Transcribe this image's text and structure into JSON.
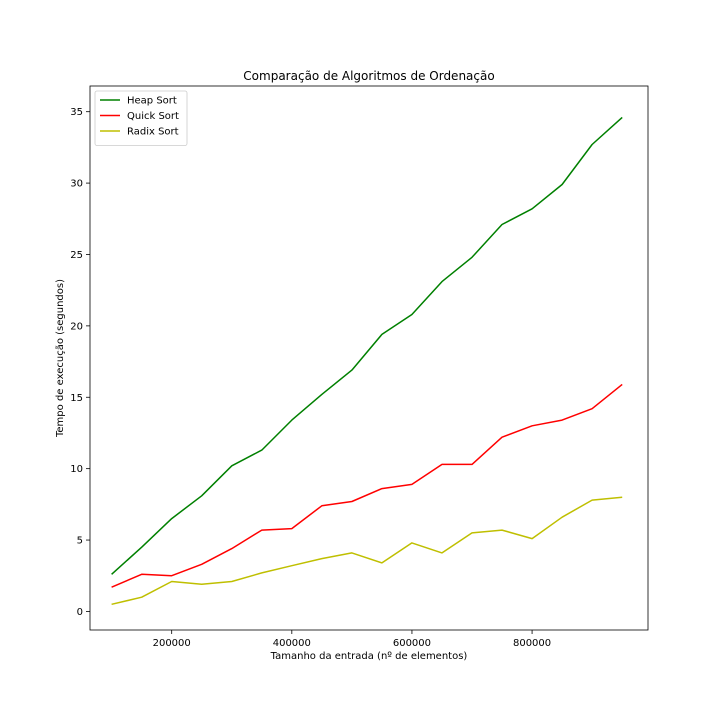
{
  "chart_data": {
    "type": "line",
    "title": "Comparação de Algoritmos de Ordenação",
    "xlabel": "Tamanho da entrada (nº de elementos)",
    "ylabel": "Tempo de execução (segundos)",
    "xlim": [
      64000,
      993000
    ],
    "ylim": [
      -1.3,
      36.8
    ],
    "xticks": [
      200000,
      400000,
      600000,
      800000
    ],
    "yticks": [
      0,
      5,
      10,
      15,
      20,
      25,
      30,
      35
    ],
    "grid": false,
    "legend_position": "top-left",
    "x": [
      100000,
      150000,
      200000,
      250000,
      300000,
      350000,
      400000,
      450000,
      500000,
      550000,
      600000,
      650000,
      700000,
      750000,
      800000,
      850000,
      900000,
      950000
    ],
    "series": [
      {
        "name": "Heap Sort",
        "color": "#008000",
        "values": [
          2.6,
          4.5,
          6.5,
          8.1,
          10.2,
          11.3,
          13.4,
          15.2,
          16.9,
          19.4,
          20.8,
          23.1,
          24.8,
          27.1,
          28.2,
          29.9,
          32.7,
          34.6
        ]
      },
      {
        "name": "Quick Sort",
        "color": "#ff0000",
        "values": [
          1.7,
          2.6,
          2.5,
          3.3,
          4.4,
          5.7,
          5.8,
          7.4,
          7.7,
          8.6,
          8.9,
          10.3,
          10.3,
          12.2,
          13.0,
          13.4,
          14.2,
          15.9
        ]
      },
      {
        "name": "Radix Sort",
        "color": "#bfbf00",
        "values": [
          0.5,
          1.0,
          2.1,
          1.9,
          2.1,
          2.7,
          3.2,
          3.7,
          4.1,
          3.4,
          4.8,
          4.1,
          5.5,
          5.7,
          5.1,
          6.6,
          7.8,
          8.0
        ]
      }
    ]
  }
}
